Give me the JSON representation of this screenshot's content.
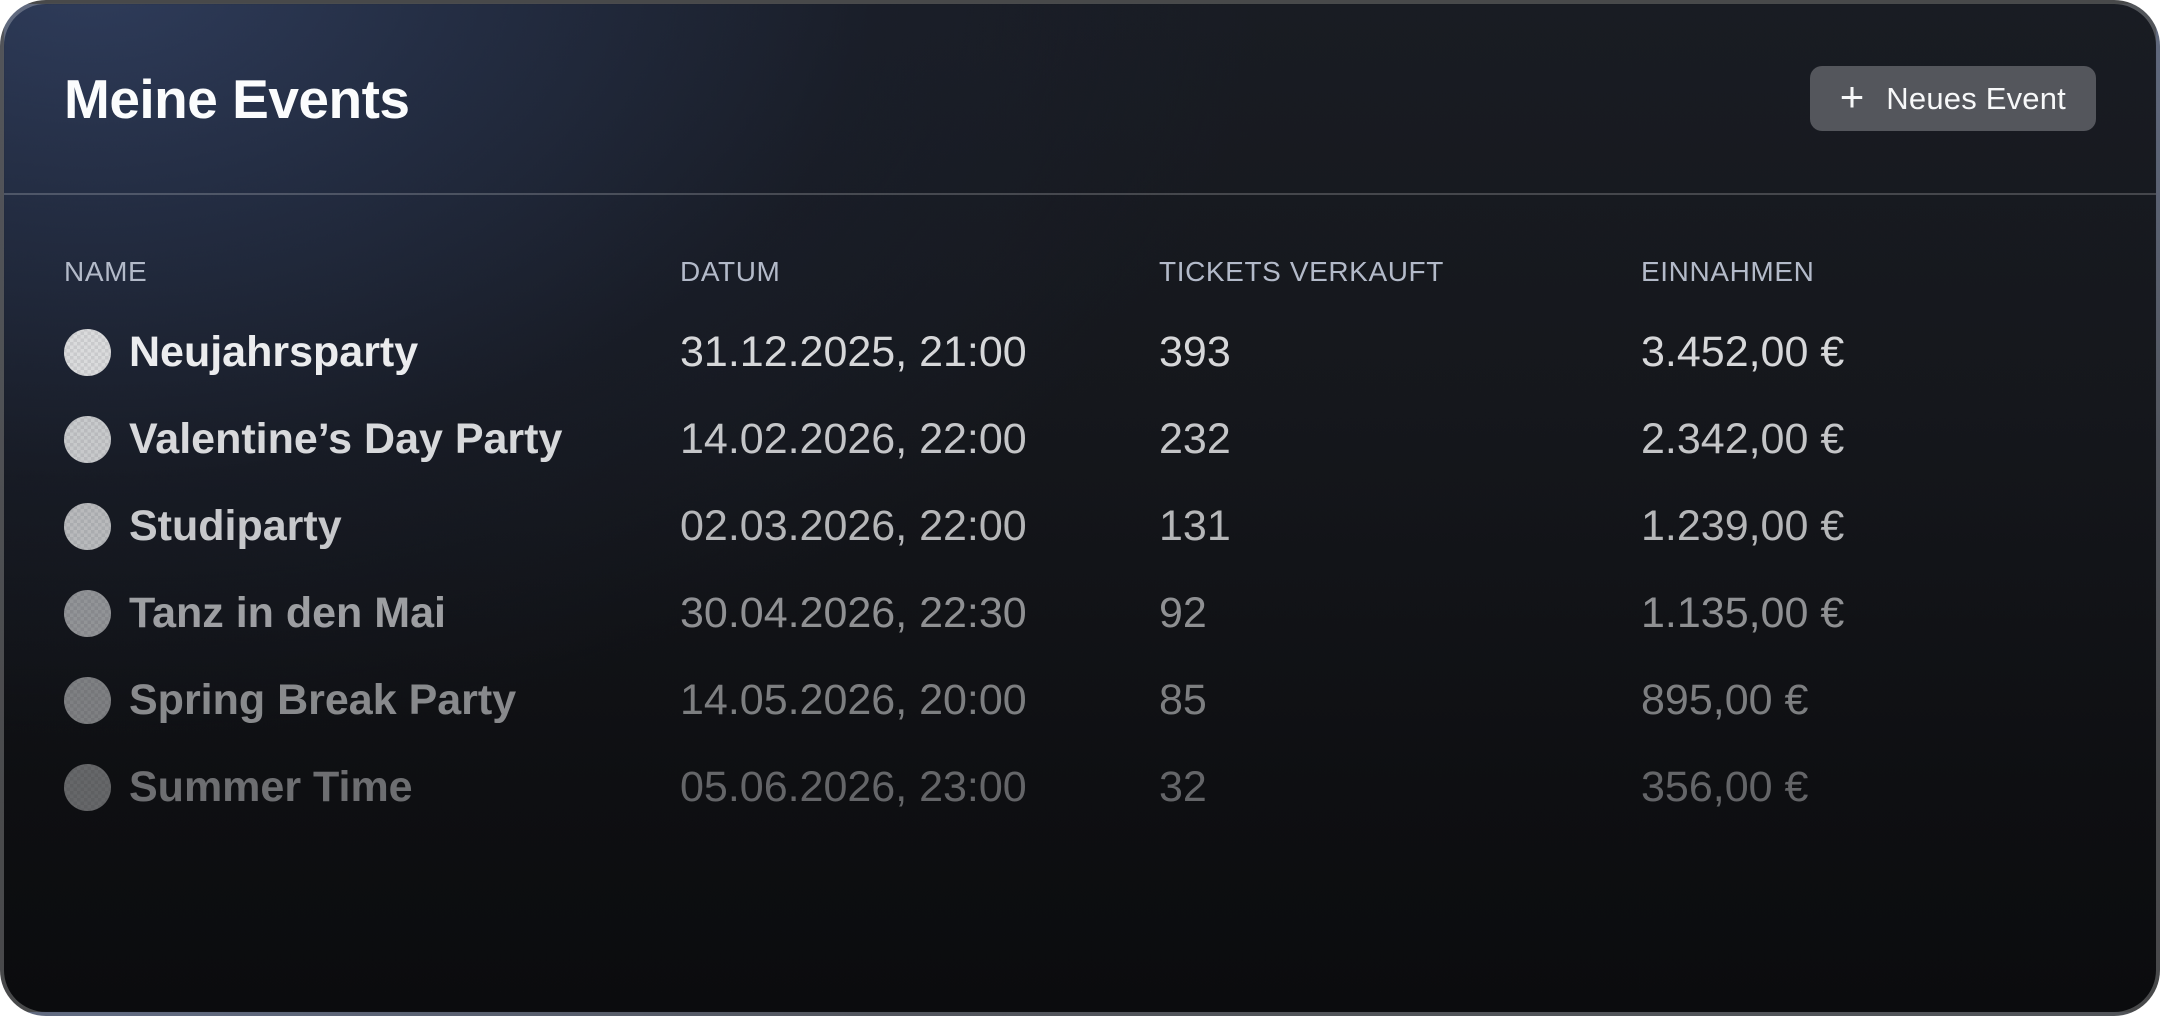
{
  "header": {
    "title": "Meine Events",
    "new_event_button": {
      "icon": "plus-icon",
      "plus_glyph": "+",
      "label": "Neues Event"
    }
  },
  "table": {
    "columns": [
      "NAME",
      "DATUM",
      "TICKETS VERKAUFT",
      "EINNAHMEN"
    ],
    "rows": [
      {
        "name": "Neujahrsparty",
        "datum": "31.12.2025, 21:00",
        "tickets": "393",
        "einnahmen": "3.452,00 €"
      },
      {
        "name": "Valentine’s Day Party",
        "datum": "14.02.2026, 22:00",
        "tickets": "232",
        "einnahmen": "2.342,00 €"
      },
      {
        "name": "Studiparty",
        "datum": "02.03.2026, 22:00",
        "tickets": "131",
        "einnahmen": "1.239,00 €"
      },
      {
        "name": "Tanz in den Mai",
        "datum": "30.04.2026, 22:30",
        "tickets": "92",
        "einnahmen": "1.135,00 €"
      },
      {
        "name": "Spring Break Party",
        "datum": "14.05.2026, 20:00",
        "tickets": "85",
        "einnahmen": "895,00 €"
      },
      {
        "name": "Summer Time",
        "datum": "05.06.2026, 23:00",
        "tickets": "32",
        "einnahmen": "356,00 €"
      }
    ]
  },
  "colors": {
    "card_glow_top_left": "#2b3650",
    "card_background_dark": "#0e0f12",
    "button_background": "#54565c",
    "column_header_text": "#b3bac9",
    "primary_text": "#ebecee",
    "secondary_text": "#d6d7d9"
  }
}
